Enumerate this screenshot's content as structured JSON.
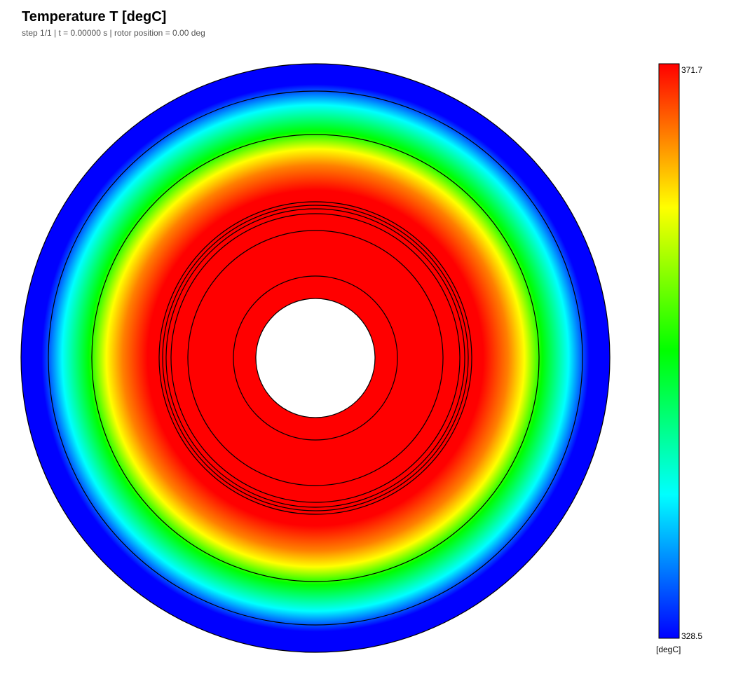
{
  "header": {
    "title": "Temperature T  [degC]",
    "subtitle": "step 1/1  |  t = 0.00000 s  |  rotor position = 0.00 deg"
  },
  "colorbar": {
    "max": 371.7,
    "min": 328.5,
    "unit": "[degC]"
  }
}
